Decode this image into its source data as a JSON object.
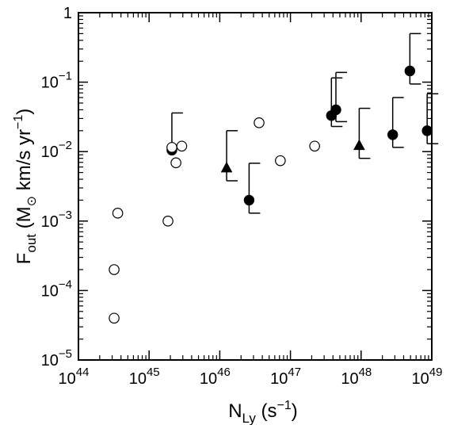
{
  "chart_data": {
    "type": "scatter",
    "x_scale": "log",
    "y_scale": "log",
    "xlim": [
      1e+44,
      1e+49
    ],
    "ylim": [
      1e-05,
      1
    ],
    "grid": false,
    "xlabel": {
      "base": "N",
      "sub": "Ly",
      "unit_open": " (s",
      "unit_sup": "−1",
      "unit_close": ")"
    },
    "ylabel": {
      "base": "F",
      "sub": "out",
      "unit_open": " (M",
      "unit_sun": "⊙",
      "unit_mid": " km/s yr",
      "unit_sup": "−1",
      "unit_close": ")"
    },
    "x_ticks": [
      {
        "value": 1e+44,
        "base": "10",
        "exp": "44"
      },
      {
        "value": 1e+45,
        "base": "10",
        "exp": "45"
      },
      {
        "value": 1e+46,
        "base": "10",
        "exp": "46"
      },
      {
        "value": 1e+47,
        "base": "10",
        "exp": "47"
      },
      {
        "value": 1e+48,
        "base": "10",
        "exp": "48"
      },
      {
        "value": 1e+49,
        "base": "10",
        "exp": "49"
      }
    ],
    "y_ticks": [
      {
        "value": 1e-05,
        "base": "10",
        "exp": "−5"
      },
      {
        "value": 0.0001,
        "base": "10",
        "exp": "−4"
      },
      {
        "value": 0.001,
        "base": "10",
        "exp": "−3"
      },
      {
        "value": 0.01,
        "base": "10",
        "exp": "−2"
      },
      {
        "value": 0.1,
        "base": "10",
        "exp": "−1"
      },
      {
        "value": 1,
        "base": "1",
        "exp": ""
      }
    ],
    "series": [
      {
        "marker": "circle-filled",
        "points": [
          {
            "x": 2.1e+45,
            "y": 0.0105,
            "yerr_hi": 0.036
          },
          {
            "x": 2.6e+46,
            "y": 0.002,
            "yerr_lo": 0.0013,
            "yerr_hi": 0.0068
          },
          {
            "x": 3.8e+47,
            "y": 0.033,
            "yerr_lo": 0.023,
            "yerr_hi": 0.115
          },
          {
            "x": 4.4e+47,
            "y": 0.04,
            "yerr_lo": 0.027,
            "yerr_hi": 0.138
          },
          {
            "x": 2.8e+48,
            "y": 0.0175,
            "yerr_lo": 0.0115,
            "yerr_hi": 0.06
          },
          {
            "x": 4.9e+48,
            "y": 0.145,
            "yerr_lo": 0.094,
            "yerr_hi": 0.5
          },
          {
            "x": 8.6e+48,
            "y": 0.02,
            "yerr_lo": 0.013,
            "yerr_hi": 0.068
          }
        ]
      },
      {
        "marker": "triangle-filled",
        "points": [
          {
            "x": 1.25e+46,
            "y": 0.0058,
            "yerr_lo": 0.0038,
            "yerr_hi": 0.02
          },
          {
            "x": 9.4e+47,
            "y": 0.0122,
            "yerr_lo": 0.008,
            "yerr_hi": 0.042
          }
        ]
      },
      {
        "marker": "circle-open",
        "points": [
          {
            "x": 3.2e+44,
            "y": 4e-05
          },
          {
            "x": 3.2e+44,
            "y": 0.0002
          },
          {
            "x": 3.6e+44,
            "y": 0.0013
          },
          {
            "x": 1.85e+45,
            "y": 0.001
          },
          {
            "x": 2.1e+45,
            "y": 0.0115
          },
          {
            "x": 2.4e+45,
            "y": 0.0069
          },
          {
            "x": 2.9e+45,
            "y": 0.012
          },
          {
            "x": 3.6e+46,
            "y": 0.026
          },
          {
            "x": 7.2e+46,
            "y": 0.0074
          },
          {
            "x": 2.2e+47,
            "y": 0.012
          }
        ]
      }
    ]
  }
}
